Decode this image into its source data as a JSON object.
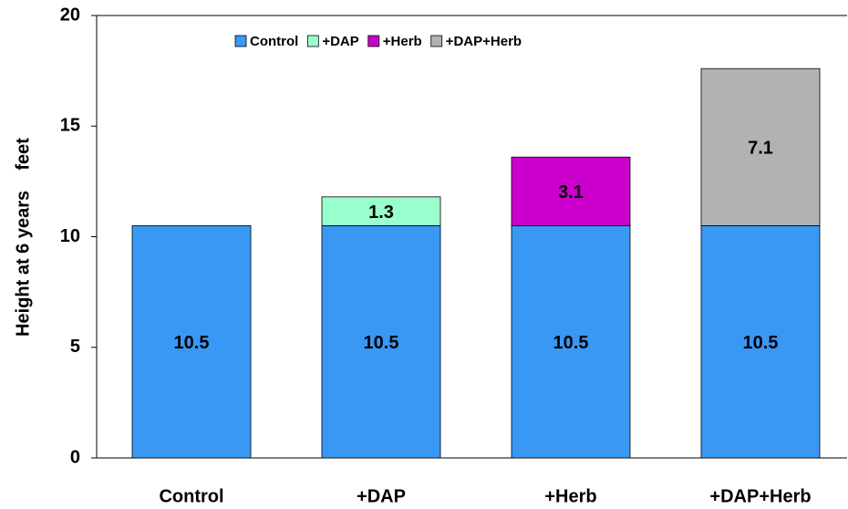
{
  "chart_data": {
    "type": "stacked_bar",
    "ylabel": "Height at 6 years    feet",
    "categories": [
      "Control",
      "+DAP",
      "+Herb",
      "+DAP+Herb"
    ],
    "series": [
      {
        "name": "Control",
        "color": "#3a98f5",
        "values": [
          10.5,
          10.5,
          10.5,
          10.5
        ]
      },
      {
        "name": "+DAP",
        "color": "#99ffcc",
        "values": [
          null,
          1.3,
          null,
          null
        ]
      },
      {
        "name": "+Herb",
        "color": "#cc00cc",
        "values": [
          null,
          null,
          3.1,
          null
        ]
      },
      {
        "name": "+DAP+Herb",
        "color": "#b2b2b2",
        "values": [
          null,
          null,
          null,
          7.1
        ]
      }
    ],
    "ylim": [
      0,
      20
    ],
    "yticks": [
      0,
      5,
      10,
      15,
      20
    ],
    "grid": false,
    "legend": "top"
  }
}
